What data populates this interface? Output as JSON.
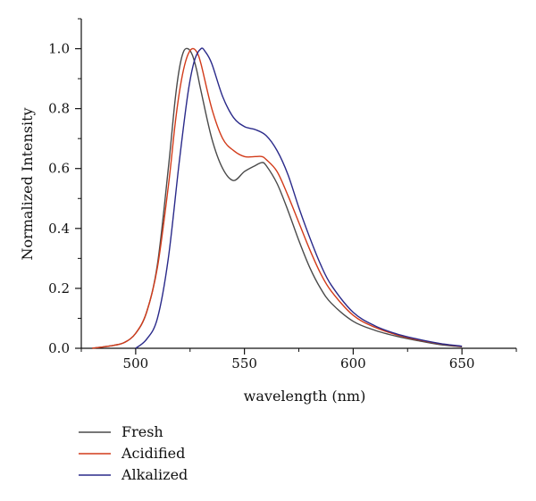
{
  "chart_data": {
    "type": "line",
    "title": "",
    "xlabel": "wavelength (nm)",
    "ylabel": "Normalized Intensity",
    "xlim": [
      475,
      675
    ],
    "ylim": [
      0,
      1.1
    ],
    "xticks": [
      500,
      550,
      600,
      650
    ],
    "xtick_labels": [
      "500",
      "550",
      "600",
      "650"
    ],
    "yticks": [
      0.0,
      0.2,
      0.4,
      0.6,
      0.8,
      1.0
    ],
    "ytick_labels": [
      "0.0",
      "0.2",
      "0.4",
      "0.6",
      "0.8",
      "1.0"
    ],
    "grid": false,
    "legend_position": "bottom-left",
    "series": [
      {
        "name": "Fresh",
        "color": "#4a4a4a",
        "x": [
          480,
          490,
          495,
          500,
          505,
          510,
          515,
          518,
          520,
          522,
          524,
          526,
          528,
          530,
          535,
          540,
          545,
          550,
          555,
          558,
          560,
          565,
          570,
          575,
          580,
          585,
          590,
          600,
          610,
          620,
          630,
          640,
          650
        ],
        "y": [
          0.0,
          0.01,
          0.02,
          0.05,
          0.12,
          0.28,
          0.6,
          0.82,
          0.93,
          0.99,
          1.0,
          0.98,
          0.93,
          0.86,
          0.7,
          0.6,
          0.56,
          0.59,
          0.61,
          0.62,
          0.61,
          0.55,
          0.46,
          0.36,
          0.27,
          0.2,
          0.15,
          0.09,
          0.06,
          0.04,
          0.025,
          0.012,
          0.005
        ]
      },
      {
        "name": "Acidified",
        "color": "#d23b1a",
        "x": [
          480,
          490,
          495,
          500,
          505,
          510,
          515,
          518,
          520,
          522,
          524,
          526,
          528,
          530,
          535,
          540,
          545,
          550,
          555,
          558,
          560,
          565,
          570,
          575,
          580,
          585,
          590,
          600,
          610,
          620,
          630,
          640,
          650
        ],
        "y": [
          0.0,
          0.01,
          0.02,
          0.05,
          0.12,
          0.27,
          0.54,
          0.74,
          0.85,
          0.93,
          0.98,
          1.0,
          0.99,
          0.95,
          0.8,
          0.7,
          0.66,
          0.64,
          0.64,
          0.64,
          0.63,
          0.59,
          0.51,
          0.42,
          0.33,
          0.25,
          0.19,
          0.11,
          0.07,
          0.045,
          0.028,
          0.015,
          0.006
        ]
      },
      {
        "name": "Alkalized",
        "color": "#2a2a8a",
        "x": [
          500,
          505,
          510,
          515,
          520,
          524,
          527,
          530,
          532,
          535,
          540,
          545,
          550,
          555,
          560,
          565,
          570,
          575,
          580,
          585,
          590,
          600,
          610,
          620,
          630,
          640,
          650
        ],
        "y": [
          0.0,
          0.03,
          0.1,
          0.3,
          0.62,
          0.85,
          0.96,
          1.0,
          0.99,
          0.95,
          0.84,
          0.77,
          0.74,
          0.73,
          0.71,
          0.66,
          0.58,
          0.47,
          0.37,
          0.28,
          0.21,
          0.12,
          0.075,
          0.048,
          0.03,
          0.016,
          0.007
        ]
      }
    ]
  }
}
